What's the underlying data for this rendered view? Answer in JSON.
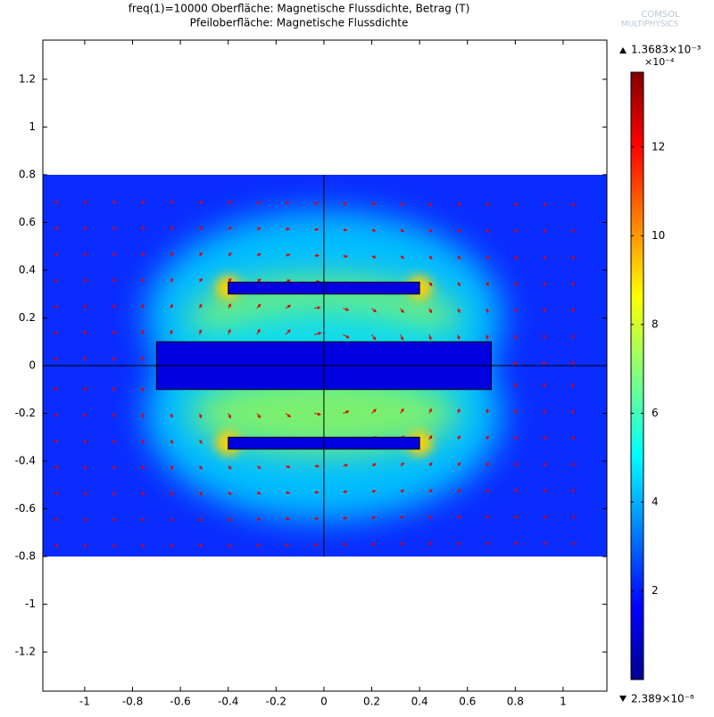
{
  "chart_data": {
    "type": "field",
    "title": "freq(1)=10000   Oberfläche: Magnetische Flussdichte, Betrag (T)",
    "subtitle": "Pfeiloberfläche: Magnetische Flussdichte",
    "logo": [
      "COMSOL",
      "MULTIPHYSICS"
    ],
    "xlim": [
      -1.175,
      1.183
    ],
    "ylim": [
      -1.364,
      1.364
    ],
    "xticks": [
      -1,
      -0.8,
      -0.6,
      -0.4,
      -0.2,
      0,
      0.2,
      0.4,
      0.6,
      0.8,
      1
    ],
    "yticks": [
      -1.2,
      -1,
      -0.8,
      -0.6,
      -0.4,
      -0.2,
      0,
      0.2,
      0.4,
      0.6,
      0.8,
      1,
      1.2
    ],
    "domain": {
      "y": [
        -0.8,
        0.8
      ]
    },
    "rectangles": [
      {
        "x": [
          -0.7,
          0.7
        ],
        "y": [
          -0.1,
          0.1
        ]
      },
      {
        "x": [
          -0.4,
          0.4
        ],
        "y": [
          0.3,
          0.35
        ]
      },
      {
        "x": [
          -0.4,
          0.4
        ],
        "y": [
          -0.35,
          -0.3
        ]
      }
    ],
    "colorbar": {
      "lim": [
        0.0002389,
        13.683
      ],
      "ticks": [
        2,
        4,
        6,
        8,
        10,
        12
      ],
      "max_label": "1.3683×10⁻³",
      "min_label": "2.389×10⁻⁸",
      "multiplier": "×10⁻⁴"
    }
  }
}
